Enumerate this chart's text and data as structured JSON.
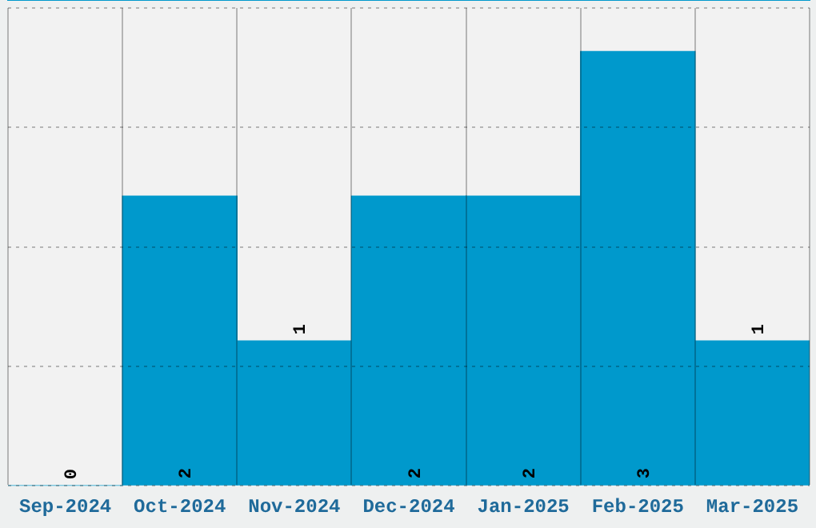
{
  "chart_data": {
    "type": "bar",
    "categories": [
      "Sep-2024",
      "Oct-2024",
      "Nov-2024",
      "Dec-2024",
      "Jan-2025",
      "Feb-2025",
      "Mar-2025"
    ],
    "values": [
      0,
      2,
      1,
      2,
      2,
      3,
      1
    ],
    "color": "#0099cc",
    "ylim": [
      0,
      3.3
    ],
    "yticks": [
      0,
      {
        "value": 0.825,
        "label": null
      },
      {
        "value": 1.65,
        "label": null
      },
      {
        "value": 2.475,
        "label": null
      },
      {
        "value": 3.3,
        "label": null
      }
    ],
    "tick_labels": "x",
    "grid": true,
    "data_labels": true
  }
}
